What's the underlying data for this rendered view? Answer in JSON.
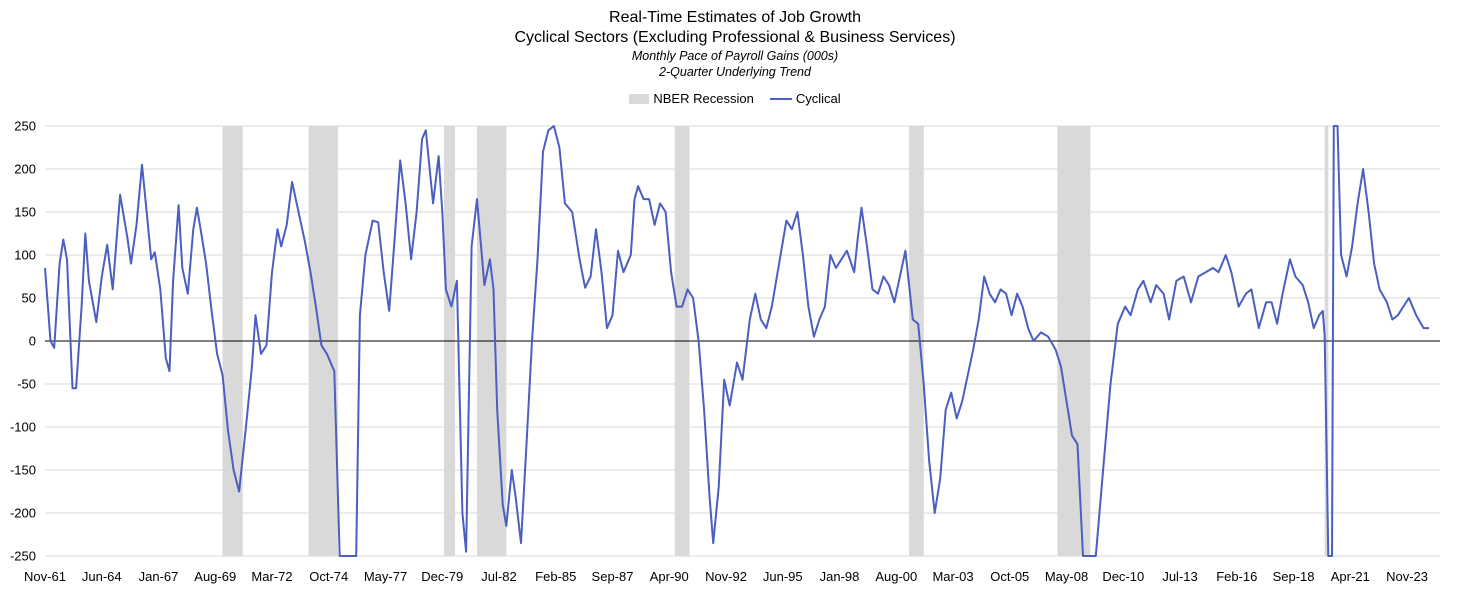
{
  "chart_data": {
    "type": "line",
    "title": "Real-Time Estimates of Job Growth",
    "subtitle": "Cyclical Sectors (Excluding Professional & Business Services)",
    "subtitle2": "Monthly Pace of Payroll Gains (000s)",
    "subtitle3": "2-Quarter Underlying Trend",
    "xlabel": "",
    "ylabel": "",
    "ylim": [
      -250,
      250
    ],
    "yticks": [
      250,
      200,
      150,
      100,
      50,
      0,
      -50,
      -100,
      -150,
      -200,
      -250
    ],
    "x_range": [
      "1961-11",
      "2025-05"
    ],
    "xtick_labels": [
      "Nov-61",
      "Jun-64",
      "Jan-67",
      "Aug-69",
      "Mar-72",
      "Oct-74",
      "May-77",
      "Dec-79",
      "Jul-82",
      "Feb-85",
      "Sep-87",
      "Apr-90",
      "Nov-92",
      "Jun-95",
      "Jan-98",
      "Aug-00",
      "Mar-03",
      "Oct-05",
      "May-08",
      "Dec-10",
      "Jul-13",
      "Feb-16",
      "Sep-18",
      "Apr-21",
      "Nov-23"
    ],
    "grid": "horizontal",
    "legend": {
      "placement": "top-center",
      "entries": [
        "NBER Recession",
        "Cyclical"
      ]
    },
    "colors": {
      "series": "#4a5fc1",
      "recession": "#d9d9d9",
      "grid": "#d9d9d9"
    },
    "recessions": [
      [
        "1969-12",
        "1970-11"
      ],
      [
        "1973-11",
        "1975-03"
      ],
      [
        "1980-01",
        "1980-07"
      ],
      [
        "1981-07",
        "1982-11"
      ],
      [
        "1990-07",
        "1991-03"
      ],
      [
        "2001-03",
        "2001-11"
      ],
      [
        "2007-12",
        "2009-06"
      ],
      [
        "2020-02",
        "2020-04"
      ]
    ],
    "series": [
      {
        "name": "Cyclical",
        "points": [
          [
            "1961-11",
            85
          ],
          [
            "1962-02",
            0
          ],
          [
            "1962-04",
            -8
          ],
          [
            "1962-07",
            90
          ],
          [
            "1962-09",
            118
          ],
          [
            "1962-11",
            95
          ],
          [
            "1963-02",
            -55
          ],
          [
            "1963-04",
            -55
          ],
          [
            "1963-07",
            40
          ],
          [
            "1963-09",
            125
          ],
          [
            "1963-11",
            70
          ],
          [
            "1964-03",
            22
          ],
          [
            "1964-06",
            75
          ],
          [
            "1964-09",
            112
          ],
          [
            "1964-12",
            60
          ],
          [
            "1965-04",
            170
          ],
          [
            "1965-08",
            120
          ],
          [
            "1965-10",
            90
          ],
          [
            "1966-01",
            135
          ],
          [
            "1966-04",
            205
          ],
          [
            "1966-07",
            140
          ],
          [
            "1966-09",
            95
          ],
          [
            "1966-11",
            103
          ],
          [
            "1967-02",
            60
          ],
          [
            "1967-05",
            -20
          ],
          [
            "1967-07",
            -35
          ],
          [
            "1967-09",
            70
          ],
          [
            "1967-12",
            158
          ],
          [
            "1968-02",
            85
          ],
          [
            "1968-05",
            55
          ],
          [
            "1968-08",
            130
          ],
          [
            "1968-10",
            155
          ],
          [
            "1968-12",
            130
          ],
          [
            "1969-03",
            90
          ],
          [
            "1969-06",
            35
          ],
          [
            "1969-09",
            -15
          ],
          [
            "1969-12",
            -40
          ],
          [
            "1970-03",
            -105
          ],
          [
            "1970-06",
            -150
          ],
          [
            "1970-09",
            -175
          ],
          [
            "1971-01",
            -95
          ],
          [
            "1971-04",
            -30
          ],
          [
            "1971-06",
            30
          ],
          [
            "1971-09",
            -15
          ],
          [
            "1971-12",
            -5
          ],
          [
            "1972-03",
            80
          ],
          [
            "1972-06",
            130
          ],
          [
            "1972-08",
            110
          ],
          [
            "1972-11",
            135
          ],
          [
            "1973-02",
            185
          ],
          [
            "1973-05",
            155
          ],
          [
            "1973-09",
            115
          ],
          [
            "1973-12",
            80
          ],
          [
            "1974-03",
            40
          ],
          [
            "1974-06",
            -5
          ],
          [
            "1974-09",
            -15
          ],
          [
            "1975-01",
            -35
          ],
          [
            "1975-04",
            -250
          ],
          [
            "1975-07",
            -250
          ],
          [
            "1976-01",
            -250
          ],
          [
            "1976-03",
            30
          ],
          [
            "1976-06",
            100
          ],
          [
            "1976-10",
            140
          ],
          [
            "1977-01",
            138
          ],
          [
            "1977-04",
            80
          ],
          [
            "1977-07",
            35
          ],
          [
            "1977-10",
            120
          ],
          [
            "1978-01",
            210
          ],
          [
            "1978-04",
            160
          ],
          [
            "1978-07",
            95
          ],
          [
            "1978-10",
            150
          ],
          [
            "1979-01",
            235
          ],
          [
            "1979-03",
            245
          ],
          [
            "1979-07",
            160
          ],
          [
            "1979-10",
            215
          ],
          [
            "1979-12",
            150
          ],
          [
            "1980-02",
            60
          ],
          [
            "1980-05",
            40
          ],
          [
            "1980-08",
            70
          ],
          [
            "1980-11",
            -200
          ],
          [
            "1981-01",
            -245
          ],
          [
            "1981-04",
            110
          ],
          [
            "1981-07",
            165
          ],
          [
            "1981-09",
            115
          ],
          [
            "1981-11",
            65
          ],
          [
            "1982-02",
            95
          ],
          [
            "1982-04",
            60
          ],
          [
            "1982-06",
            -80
          ],
          [
            "1982-09",
            -190
          ],
          [
            "1982-11",
            -215
          ],
          [
            "1983-02",
            -150
          ],
          [
            "1983-04",
            -180
          ],
          [
            "1983-07",
            -235
          ],
          [
            "1983-10",
            -120
          ],
          [
            "1984-01",
            0
          ],
          [
            "1984-04",
            95
          ],
          [
            "1984-07",
            220
          ],
          [
            "1984-10",
            245
          ],
          [
            "1985-01",
            250
          ],
          [
            "1985-04",
            225
          ],
          [
            "1985-07",
            160
          ],
          [
            "1985-11",
            150
          ],
          [
            "1986-03",
            95
          ],
          [
            "1986-06",
            62
          ],
          [
            "1986-09",
            75
          ],
          [
            "1986-12",
            130
          ],
          [
            "1987-03",
            80
          ],
          [
            "1987-06",
            15
          ],
          [
            "1987-09",
            30
          ],
          [
            "1987-12",
            105
          ],
          [
            "1988-03",
            80
          ],
          [
            "1988-07",
            100
          ],
          [
            "1988-09",
            165
          ],
          [
            "1988-11",
            180
          ],
          [
            "1989-02",
            165
          ],
          [
            "1989-05",
            165
          ],
          [
            "1989-08",
            135
          ],
          [
            "1989-11",
            160
          ],
          [
            "1990-02",
            150
          ],
          [
            "1990-05",
            80
          ],
          [
            "1990-08",
            40
          ],
          [
            "1990-11",
            40
          ],
          [
            "1991-02",
            60
          ],
          [
            "1991-05",
            50
          ],
          [
            "1991-08",
            0
          ],
          [
            "1991-11",
            -80
          ],
          [
            "1992-02",
            -180
          ],
          [
            "1992-04",
            -235
          ],
          [
            "1992-07",
            -170
          ],
          [
            "1992-10",
            -45
          ],
          [
            "1993-01",
            -75
          ],
          [
            "1993-05",
            -25
          ],
          [
            "1993-08",
            -45
          ],
          [
            "1993-12",
            25
          ],
          [
            "1994-03",
            55
          ],
          [
            "1994-06",
            25
          ],
          [
            "1994-09",
            15
          ],
          [
            "1994-12",
            40
          ],
          [
            "1995-04",
            90
          ],
          [
            "1995-08",
            140
          ],
          [
            "1995-11",
            130
          ],
          [
            "1996-02",
            150
          ],
          [
            "1996-05",
            100
          ],
          [
            "1996-08",
            40
          ],
          [
            "1996-11",
            5
          ],
          [
            "1997-02",
            25
          ],
          [
            "1997-05",
            40
          ],
          [
            "1997-08",
            100
          ],
          [
            "1997-11",
            85
          ],
          [
            "1998-02",
            95
          ],
          [
            "1998-05",
            105
          ],
          [
            "1998-09",
            80
          ],
          [
            "1998-11",
            120
          ],
          [
            "1999-01",
            155
          ],
          [
            "1999-04",
            110
          ],
          [
            "1999-07",
            60
          ],
          [
            "1999-10",
            55
          ],
          [
            "2000-01",
            75
          ],
          [
            "2000-04",
            65
          ],
          [
            "2000-07",
            45
          ],
          [
            "2000-10",
            75
          ],
          [
            "2001-01",
            105
          ],
          [
            "2001-03",
            65
          ],
          [
            "2001-05",
            25
          ],
          [
            "2001-08",
            20
          ],
          [
            "2001-11",
            -50
          ],
          [
            "2002-02",
            -140
          ],
          [
            "2002-05",
            -200
          ],
          [
            "2002-08",
            -160
          ],
          [
            "2002-11",
            -80
          ],
          [
            "2003-02",
            -60
          ],
          [
            "2003-05",
            -90
          ],
          [
            "2003-08",
            -70
          ],
          [
            "2003-11",
            -40
          ],
          [
            "2004-02",
            -10
          ],
          [
            "2004-05",
            25
          ],
          [
            "2004-08",
            75
          ],
          [
            "2004-11",
            55
          ],
          [
            "2005-02",
            45
          ],
          [
            "2005-05",
            60
          ],
          [
            "2005-08",
            55
          ],
          [
            "2005-11",
            30
          ],
          [
            "2006-02",
            55
          ],
          [
            "2006-05",
            40
          ],
          [
            "2006-08",
            15
          ],
          [
            "2006-11",
            0
          ],
          [
            "2007-03",
            10
          ],
          [
            "2007-07",
            5
          ],
          [
            "2007-11",
            -10
          ],
          [
            "2008-02",
            -30
          ],
          [
            "2008-05",
            -70
          ],
          [
            "2008-08",
            -110
          ],
          [
            "2008-11",
            -120
          ],
          [
            "2009-02",
            -250
          ],
          [
            "2009-06",
            -250
          ],
          [
            "2009-09",
            -250
          ],
          [
            "2010-01",
            -150
          ],
          [
            "2010-05",
            -50
          ],
          [
            "2010-09",
            20
          ],
          [
            "2011-01",
            40
          ],
          [
            "2011-04",
            30
          ],
          [
            "2011-08",
            60
          ],
          [
            "2011-11",
            70
          ],
          [
            "2012-03",
            45
          ],
          [
            "2012-06",
            65
          ],
          [
            "2012-10",
            55
          ],
          [
            "2013-01",
            25
          ],
          [
            "2013-05",
            70
          ],
          [
            "2013-09",
            75
          ],
          [
            "2014-01",
            45
          ],
          [
            "2014-05",
            75
          ],
          [
            "2014-09",
            80
          ],
          [
            "2015-01",
            85
          ],
          [
            "2015-04",
            80
          ],
          [
            "2015-08",
            100
          ],
          [
            "2015-11",
            80
          ],
          [
            "2016-03",
            40
          ],
          [
            "2016-07",
            55
          ],
          [
            "2016-10",
            60
          ],
          [
            "2017-02",
            15
          ],
          [
            "2017-06",
            45
          ],
          [
            "2017-09",
            45
          ],
          [
            "2017-12",
            20
          ],
          [
            "2018-03",
            55
          ],
          [
            "2018-07",
            95
          ],
          [
            "2018-10",
            75
          ],
          [
            "2019-02",
            65
          ],
          [
            "2019-05",
            45
          ],
          [
            "2019-08",
            15
          ],
          [
            "2019-11",
            30
          ],
          [
            "2020-01",
            35
          ],
          [
            "2020-02",
            5
          ],
          [
            "2020-04",
            -250
          ],
          [
            "2020-06",
            -250
          ],
          [
            "2020-07",
            250
          ],
          [
            "2020-09",
            250
          ],
          [
            "2020-11",
            100
          ],
          [
            "2021-02",
            75
          ],
          [
            "2021-05",
            110
          ],
          [
            "2021-08",
            160
          ],
          [
            "2021-11",
            200
          ],
          [
            "2022-02",
            150
          ],
          [
            "2022-05",
            90
          ],
          [
            "2022-08",
            60
          ],
          [
            "2022-12",
            45
          ],
          [
            "2023-03",
            25
          ],
          [
            "2023-06",
            30
          ],
          [
            "2023-09",
            40
          ],
          [
            "2023-12",
            50
          ],
          [
            "2024-04",
            30
          ],
          [
            "2024-08",
            15
          ],
          [
            "2024-11",
            15
          ]
        ]
      }
    ]
  }
}
